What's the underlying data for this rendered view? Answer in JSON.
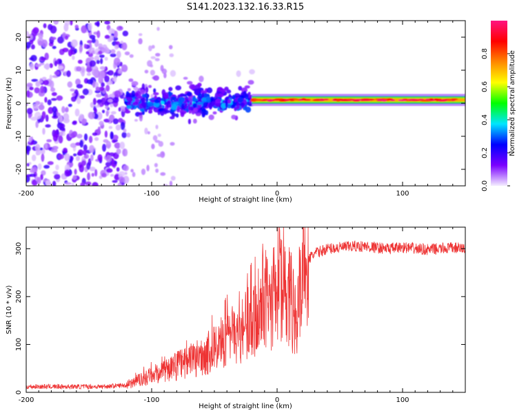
{
  "title": "S141.2023.132.16.33.R15",
  "chart_data": [
    {
      "type": "heatmap",
      "xlabel": "Height of straight line (km)",
      "ylabel": "Frequency (Hz)",
      "xlim": [
        -200,
        150
      ],
      "ylim": [
        -25,
        25
      ],
      "x_ticks": [
        -200,
        -100,
        0,
        100
      ],
      "y_ticks": [
        -20,
        -10,
        0,
        10,
        20
      ],
      "colorbar": {
        "label": "Normalized spectral amplitude",
        "range": [
          0,
          1
        ],
        "ticks": [
          "0.0",
          "0.2",
          "0.4",
          "0.6",
          "0.8"
        ],
        "colors": [
          "#f4eeff",
          "#7a00ff",
          "#0000ff",
          "#00e6ff",
          "#00ff00",
          "#ffff00",
          "#ff8800",
          "#ff0000",
          "#ff1480"
        ]
      },
      "regions": [
        {
          "x": [
            -200,
            -120
          ],
          "freq": [
            -25,
            25
          ],
          "amplitude": 0.12,
          "pattern": "scattered noise"
        },
        {
          "x": [
            -120,
            -20
          ],
          "freq": [
            -10,
            10
          ],
          "amplitude": 0.3,
          "pattern": "clustered returns around 0 Hz"
        },
        {
          "x": [
            -20,
            150
          ],
          "freq": [
            0,
            2
          ],
          "amplitude": 0.95,
          "pattern": "narrow band"
        }
      ]
    },
    {
      "type": "line",
      "xlabel": "Height of straight line (km)",
      "ylabel": "SNR (10 * v/v)",
      "xlim": [
        -200,
        150
      ],
      "ylim": [
        0,
        345
      ],
      "x_ticks": [
        -200,
        -100,
        0,
        100
      ],
      "y_ticks": [
        0,
        100,
        200,
        300
      ],
      "color": "#ee3333",
      "series": [
        {
          "x": [
            -200,
            -180,
            -160,
            -140,
            -120,
            -110,
            -100,
            -90,
            -80,
            -70,
            -60,
            -50,
            -40,
            -30,
            -20,
            -15,
            -10,
            -5,
            0,
            5,
            10,
            15,
            20,
            25,
            30,
            40,
            50,
            60,
            70,
            80,
            90,
            100,
            110,
            120,
            130,
            140,
            150
          ],
          "y": [
            12,
            12,
            12,
            12,
            15,
            25,
            35,
            45,
            55,
            65,
            75,
            90,
            110,
            125,
            155,
            175,
            195,
            185,
            215,
            230,
            205,
            150,
            265,
            278,
            290,
            300,
            302,
            305,
            305,
            302,
            300,
            303,
            300,
            298,
            300,
            302,
            300
          ]
        }
      ]
    }
  ]
}
